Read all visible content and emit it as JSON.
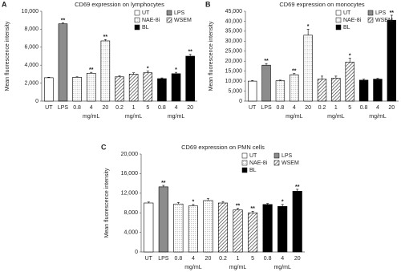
{
  "chart_data": [
    {
      "type": "bar",
      "panel": "A",
      "title": "CD69 expression on lymphocytes",
      "y_label": "Mean fluorescence intensity",
      "categories": [
        "UT",
        "LPS",
        "0.8",
        "4",
        "20",
        "0.2",
        "1",
        "5",
        "0.8",
        "4",
        "20"
      ],
      "ylim": [
        0,
        10000
      ],
      "yticks": [
        0,
        {
          "value": 2000,
          "label": "2,000"
        },
        {
          "value": 4000,
          "label": "4,000"
        },
        {
          "value": 6000,
          "label": "6,000"
        },
        {
          "value": 8000,
          "label": "8,000"
        },
        {
          "value": 10000,
          "label": "10,000"
        }
      ],
      "legend": "upper right",
      "series": [
        {
          "name": "UT",
          "color": "#ffffff",
          "values": [
            2600,
            null,
            null,
            null,
            null,
            null,
            null,
            null,
            null,
            null,
            null
          ],
          "errors": [
            50,
            null,
            null,
            null,
            null,
            null,
            null,
            null,
            null,
            null,
            null
          ]
        },
        {
          "name": "LPS",
          "color": "#8c8c8c",
          "values": [
            null,
            8600,
            null,
            null,
            null,
            null,
            null,
            null,
            null,
            null,
            null
          ],
          "errors": [
            null,
            100,
            null,
            null,
            null,
            null,
            null,
            null,
            null,
            null,
            null
          ]
        },
        {
          "name": "NAE-8i",
          "color": "#9a9a9a",
          "pattern": "dots",
          "unit": "mg/mL",
          "values": [
            null,
            null,
            2650,
            3100,
            6700,
            null,
            null,
            null,
            null,
            null,
            null
          ],
          "errors": [
            null,
            null,
            50,
            100,
            150,
            null,
            null,
            null,
            null,
            null,
            null
          ]
        },
        {
          "name": "WSEM",
          "color": "#333333",
          "pattern": "hatch",
          "unit": "mg/mL",
          "values": [
            null,
            null,
            null,
            null,
            null,
            2700,
            3000,
            3150,
            null,
            null,
            null
          ],
          "errors": [
            null,
            null,
            null,
            null,
            null,
            100,
            150,
            200,
            null,
            null,
            null
          ]
        },
        {
          "name": "BL",
          "color": "#000000",
          "unit": "mg/mL",
          "values": [
            null,
            null,
            null,
            null,
            null,
            null,
            null,
            null,
            2500,
            3050,
            5000
          ],
          "errors": [
            null,
            null,
            null,
            null,
            null,
            null,
            null,
            null,
            80,
            150,
            200
          ]
        }
      ],
      "annotations": [
        null,
        "**",
        null,
        "**",
        "**",
        null,
        null,
        "*",
        null,
        "*",
        "**"
      ]
    },
    {
      "type": "bar",
      "panel": "B",
      "title": "CD69 expression on monocytes",
      "y_label": "Mean fluorescence intensity",
      "categories": [
        "UT",
        "LPS",
        "0.8",
        "4",
        "20",
        "0.2",
        "1",
        "5",
        "0.8",
        "4",
        "20"
      ],
      "ylim": [
        0,
        45000
      ],
      "yticks": [
        0,
        {
          "value": 5000,
          "label": "5,000"
        },
        {
          "value": 10000,
          "label": "10,000"
        },
        {
          "value": 15000,
          "label": "15,000"
        },
        {
          "value": 20000,
          "label": "20,000"
        },
        {
          "value": 25000,
          "label": "25,000"
        },
        {
          "value": 30000,
          "label": "30,000"
        },
        {
          "value": 35000,
          "label": "35,000"
        },
        {
          "value": 40000,
          "label": "40,000"
        },
        {
          "value": 45000,
          "label": "45,000"
        }
      ],
      "legend": "upper right",
      "series": [
        {
          "name": "UT",
          "color": "#ffffff",
          "values": [
            10000,
            null,
            null,
            null,
            null,
            null,
            null,
            null,
            null,
            null,
            null
          ],
          "errors": [
            300,
            null,
            null,
            null,
            null,
            null,
            null,
            null,
            null,
            null,
            null
          ]
        },
        {
          "name": "LPS",
          "color": "#8c8c8c",
          "values": [
            null,
            18000,
            null,
            null,
            null,
            null,
            null,
            null,
            null,
            null,
            null
          ],
          "errors": [
            null,
            800,
            null,
            null,
            null,
            null,
            null,
            null,
            null,
            null,
            null
          ]
        },
        {
          "name": "NAE-8i",
          "color": "#9a9a9a",
          "pattern": "dots",
          "unit": "mg/mL",
          "values": [
            null,
            null,
            10200,
            13200,
            33000,
            null,
            null,
            null,
            null,
            null,
            null
          ],
          "errors": [
            null,
            null,
            300,
            600,
            3000,
            null,
            null,
            null,
            null,
            null,
            null
          ]
        },
        {
          "name": "WSEM",
          "color": "#333333",
          "pattern": "hatch",
          "unit": "mg/mL",
          "values": [
            null,
            null,
            null,
            null,
            null,
            11000,
            11500,
            19500,
            null,
            null,
            null
          ],
          "errors": [
            null,
            null,
            null,
            null,
            null,
            1500,
            1000,
            2000,
            null,
            null,
            null
          ]
        },
        {
          "name": "BL",
          "color": "#000000",
          "unit": "mg/mL",
          "values": [
            null,
            null,
            null,
            null,
            null,
            null,
            null,
            null,
            10500,
            11000,
            40500
          ],
          "errors": [
            null,
            null,
            null,
            null,
            null,
            null,
            null,
            null,
            500,
            400,
            2500
          ]
        }
      ],
      "annotations": [
        null,
        "**",
        null,
        "**",
        "*",
        null,
        null,
        "*",
        null,
        null,
        "**"
      ]
    },
    {
      "type": "bar",
      "panel": "C",
      "title": "CD69 expression on PMN cells",
      "y_label": "Mean fluorescence intensity",
      "categories": [
        "UT",
        "LPS",
        "0.8",
        "4",
        "20",
        "0.2",
        "1",
        "5",
        "0.8",
        "4",
        "20"
      ],
      "ylim": [
        0,
        20000
      ],
      "yticks": [
        0,
        {
          "value": 4000,
          "label": "4,000"
        },
        {
          "value": 8000,
          "label": "8,000"
        },
        {
          "value": 12000,
          "label": "12,000"
        },
        {
          "value": 16000,
          "label": "16,000"
        },
        {
          "value": 20000,
          "label": "20,000"
        }
      ],
      "legend": "upper right",
      "series": [
        {
          "name": "UT",
          "color": "#ffffff",
          "values": [
            10000,
            null,
            null,
            null,
            null,
            null,
            null,
            null,
            null,
            null,
            null
          ],
          "errors": [
            200,
            null,
            null,
            null,
            null,
            null,
            null,
            null,
            null,
            null,
            null
          ]
        },
        {
          "name": "LPS",
          "color": "#8c8c8c",
          "values": [
            null,
            13300,
            null,
            null,
            null,
            null,
            null,
            null,
            null,
            null,
            null
          ],
          "errors": [
            null,
            300,
            null,
            null,
            null,
            null,
            null,
            null,
            null,
            null,
            null
          ]
        },
        {
          "name": "NAE-8i",
          "color": "#9a9a9a",
          "pattern": "dots",
          "unit": "mg/mL",
          "values": [
            null,
            null,
            9800,
            9400,
            10500,
            null,
            null,
            null,
            null,
            null,
            null
          ],
          "errors": [
            null,
            null,
            300,
            300,
            400,
            null,
            null,
            null,
            null,
            null,
            null
          ]
        },
        {
          "name": "WSEM",
          "color": "#333333",
          "pattern": "hatch",
          "unit": "mg/mL",
          "values": [
            null,
            null,
            null,
            null,
            null,
            10000,
            8600,
            8000,
            null,
            null,
            null
          ],
          "errors": [
            null,
            null,
            null,
            null,
            null,
            300,
            300,
            300,
            null,
            null,
            null
          ]
        },
        {
          "name": "BL",
          "color": "#000000",
          "unit": "mg/mL",
          "values": [
            null,
            null,
            null,
            null,
            null,
            null,
            null,
            null,
            9700,
            9300,
            12400
          ],
          "errors": [
            null,
            null,
            null,
            null,
            null,
            null,
            null,
            null,
            200,
            400,
            400
          ]
        }
      ],
      "annotations": [
        null,
        "**",
        null,
        "*",
        null,
        null,
        "**",
        "**",
        null,
        "*",
        "**"
      ]
    }
  ]
}
